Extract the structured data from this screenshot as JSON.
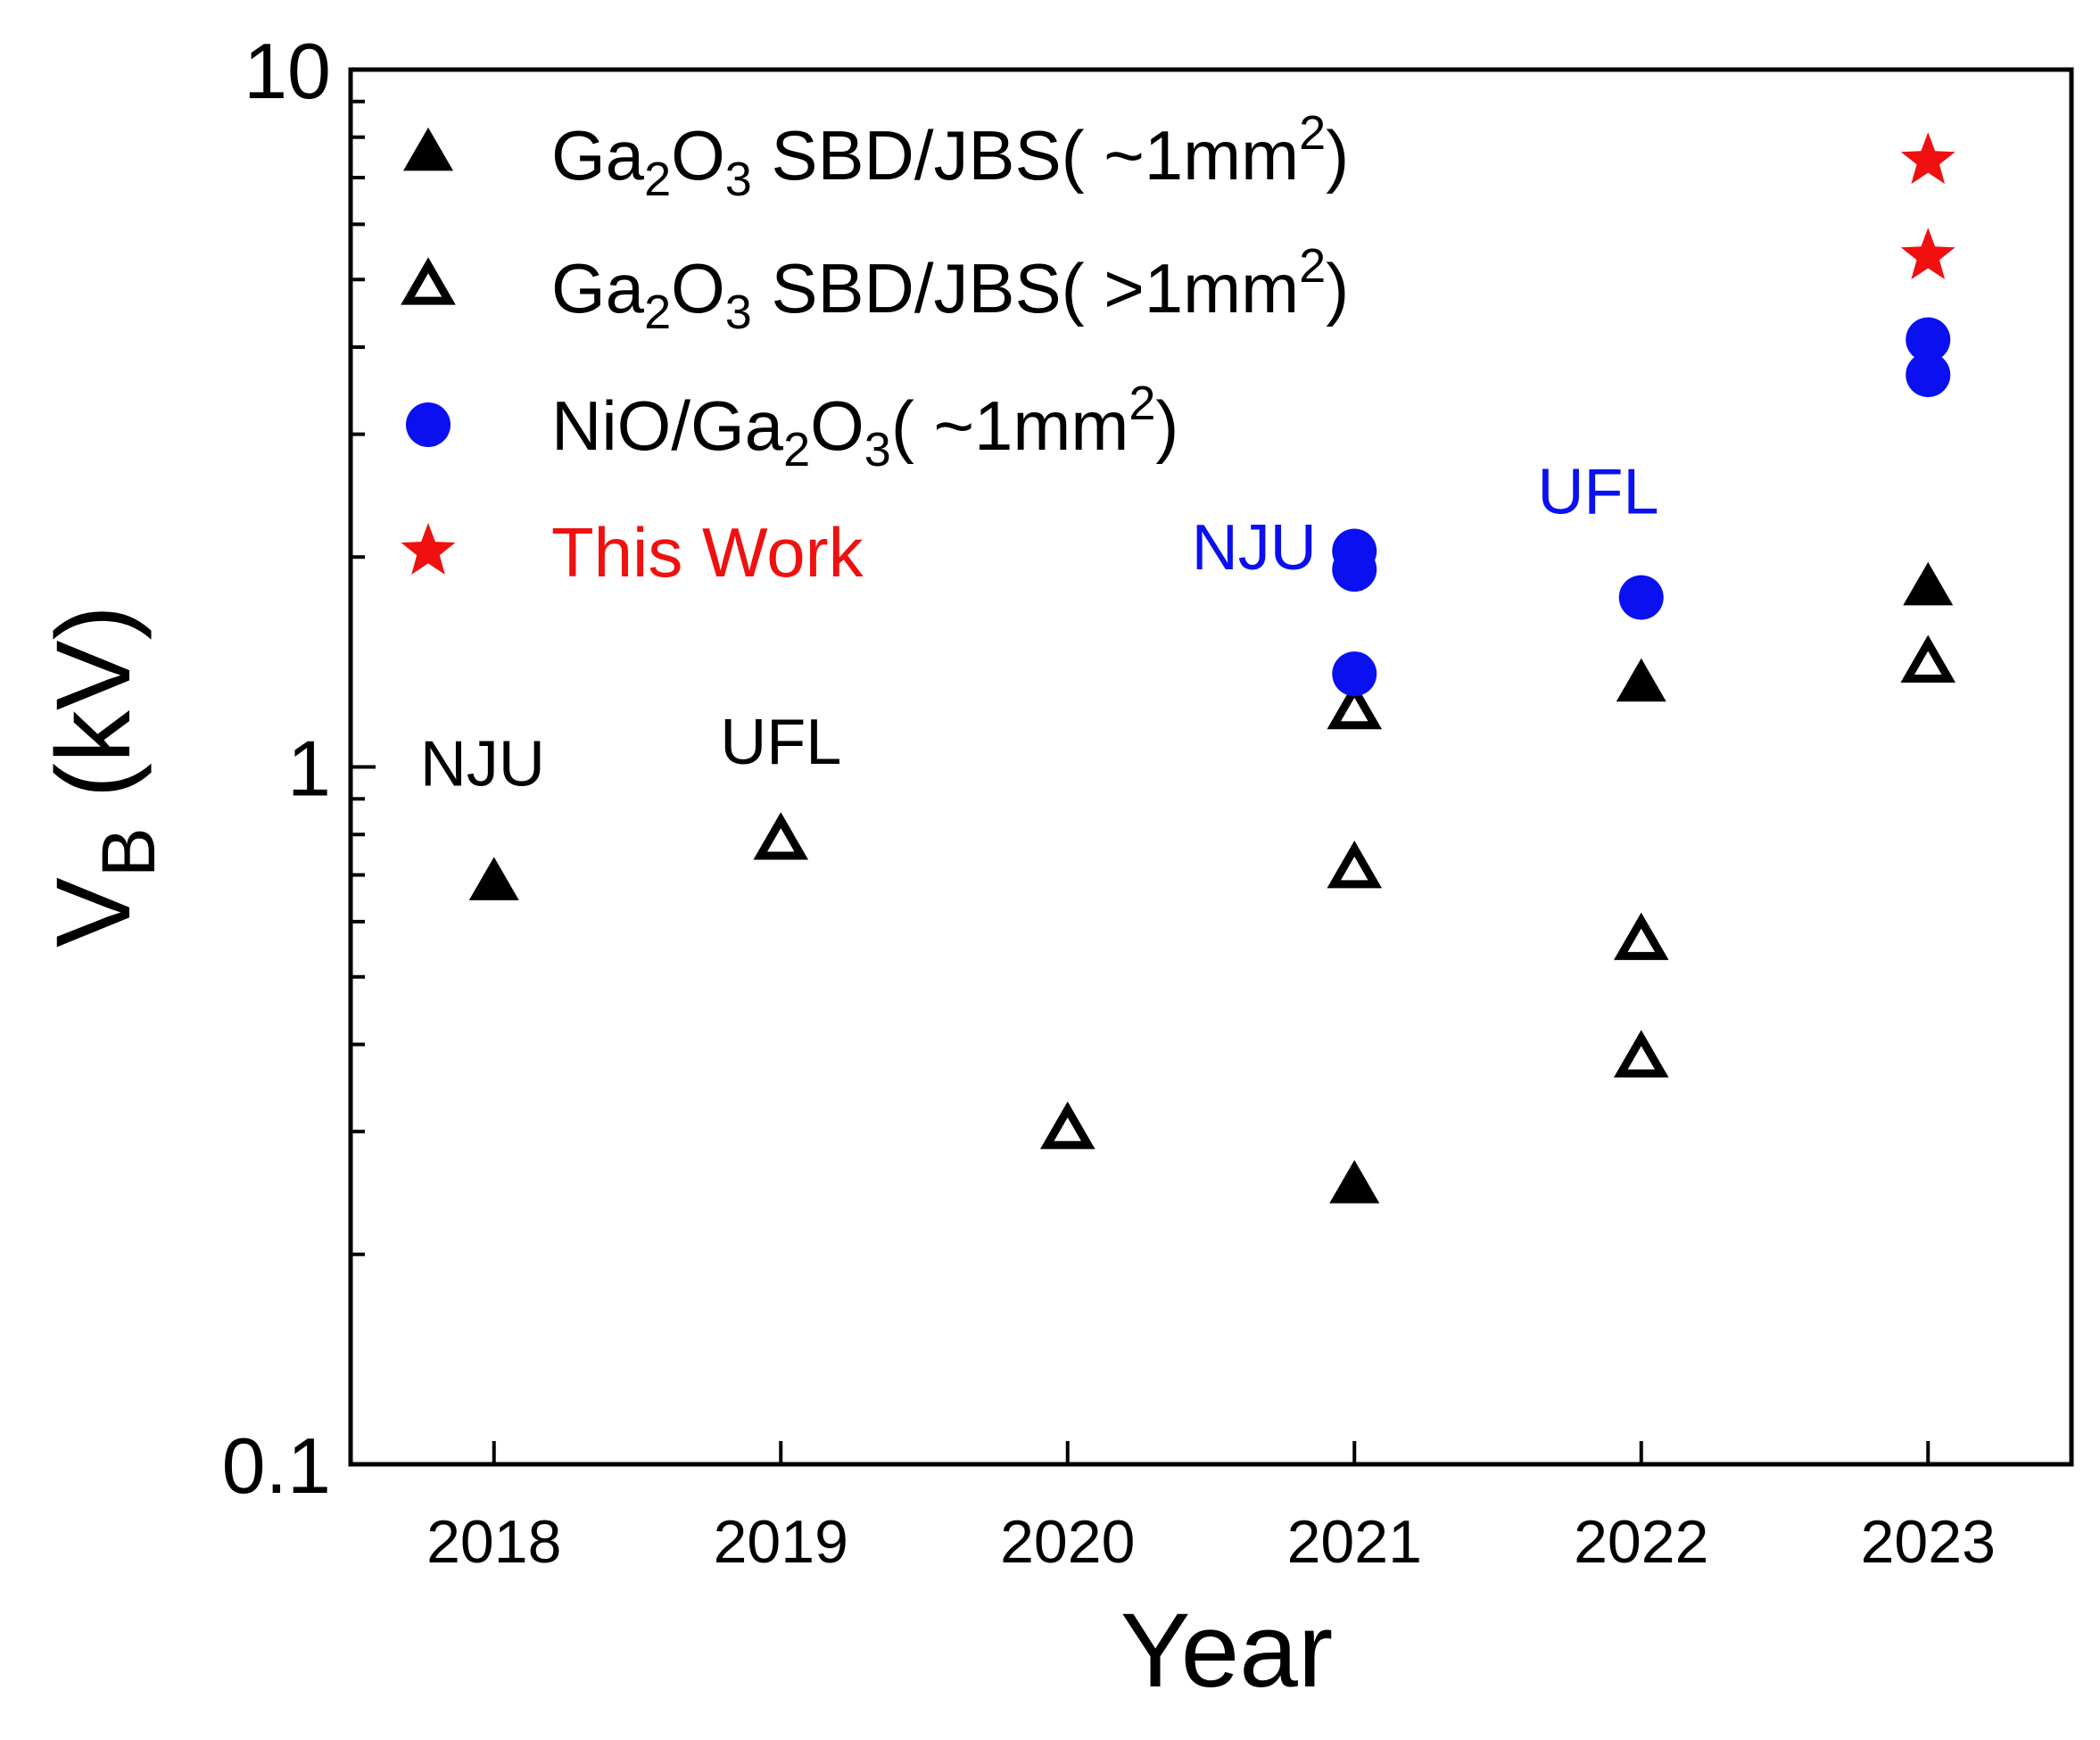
{
  "chart_data": {
    "type": "scatter",
    "xlabel": "Year",
    "ylabel": {
      "main": "V",
      "sub": "B",
      "unit": " (kV)"
    },
    "yscale": "log",
    "ylim": [
      0.1,
      10
    ],
    "xlim": [
      2017.5,
      2023.5
    ],
    "xticks": [
      "2018",
      "2019",
      "2020",
      "2021",
      "2022",
      "2023"
    ],
    "yticks": [
      "0.1",
      "1",
      "10"
    ],
    "legend_position": "top-left",
    "colors": {
      "black": "#000000",
      "blue": "#0a10f0",
      "red": "#f01010"
    },
    "series": [
      {
        "id": "filled-triangle",
        "marker": "filled-triangle",
        "color": "#000000",
        "legend": {
          "pre": "Ga",
          "sub1": "2",
          "mid": "O",
          "sub2": "3",
          "post": " SBD/JBS( ~1mm",
          "sup": "2",
          "end": ")"
        },
        "points": [
          {
            "x": 2018,
            "y": 0.68
          },
          {
            "x": 2021,
            "y": 0.25
          },
          {
            "x": 2022,
            "y": 1.31
          },
          {
            "x": 2023,
            "y": 1.8
          }
        ]
      },
      {
        "id": "open-triangle",
        "marker": "open-triangle",
        "color": "#000000",
        "legend": {
          "pre": "Ga",
          "sub1": "2",
          "mid": "O",
          "sub2": "3",
          "post": " SBD/JBS( >1mm",
          "sup": "2",
          "end": ")"
        },
        "points": [
          {
            "x": 2019,
            "y": 0.78
          },
          {
            "x": 2020,
            "y": 0.3
          },
          {
            "x": 2021,
            "y": 1.2
          },
          {
            "x": 2021,
            "y": 0.71
          },
          {
            "x": 2022,
            "y": 0.56
          },
          {
            "x": 2022,
            "y": 0.38
          },
          {
            "x": 2023,
            "y": 1.4
          }
        ]
      },
      {
        "id": "blue-circle",
        "marker": "circle",
        "color": "#0a10f0",
        "legend": {
          "pre": "NiO/Ga",
          "sub1": "2",
          "mid": "O",
          "sub2": "3",
          "post": "( ~1mm",
          "sup": "2",
          "end": ")"
        },
        "points": [
          {
            "x": 2021,
            "y": 2.04
          },
          {
            "x": 2021,
            "y": 1.92
          },
          {
            "x": 2021,
            "y": 1.36
          },
          {
            "x": 2022,
            "y": 1.75
          },
          {
            "x": 2023,
            "y": 4.1
          },
          {
            "x": 2023,
            "y": 3.65
          }
        ]
      },
      {
        "id": "red-star",
        "marker": "star",
        "color": "#f01010",
        "legend": {
          "pre": "This Work"
        },
        "points": [
          {
            "x": 2023,
            "y": 7.4
          },
          {
            "x": 2023,
            "y": 5.4
          }
        ]
      }
    ],
    "annotations": [
      {
        "text": "NJU",
        "color": "#000000",
        "x": 2017.96,
        "y": 0.94
      },
      {
        "text": "UFL",
        "color": "#000000",
        "x": 2019.0,
        "y": 1.01
      },
      {
        "text": "NJU",
        "color": "#0a10f0",
        "x": 2020.65,
        "y": 1.92
      },
      {
        "text": "UFL",
        "color": "#0a10f0",
        "x": 2021.85,
        "y": 2.31
      }
    ]
  }
}
